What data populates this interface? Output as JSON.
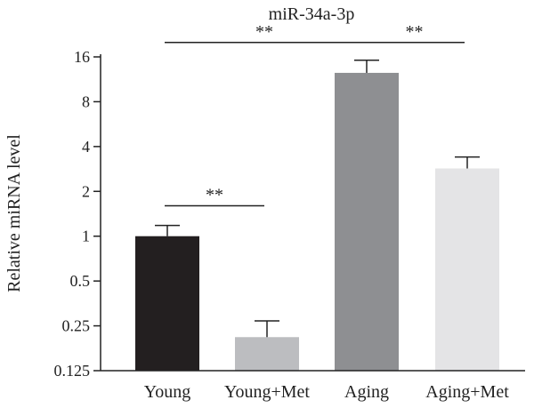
{
  "chart_data": {
    "type": "bar",
    "title": "miR-34a-3p",
    "ylabel": "Relative miRNA level",
    "xlabel": "",
    "yscale": "log2",
    "ylim": [
      0.125,
      16
    ],
    "yticks": [
      0.125,
      0.25,
      0.5,
      1,
      2,
      4,
      8,
      16
    ],
    "ytick_labels": [
      "0.125",
      "0.25",
      "0.5",
      "1",
      "2",
      "4",
      "8",
      "16"
    ],
    "categories": [
      "Young",
      "Young+Met",
      "Aging",
      "Aging+Met"
    ],
    "values": [
      1.0,
      0.21,
      12.5,
      2.85
    ],
    "error_upper": [
      1.18,
      0.27,
      15.2,
      3.4
    ],
    "colors": [
      "#231f20",
      "#bcbdc0",
      "#8e8f92",
      "#e4e4e6"
    ],
    "significance": [
      {
        "from": "Young",
        "to": "Aging",
        "label": "**",
        "level": 20
      },
      {
        "from": "Aging",
        "to": "Aging+Met",
        "label": "**",
        "level": 20
      },
      {
        "from": "Young",
        "to": "Young+Met",
        "label": "**",
        "level": 1.6
      }
    ]
  }
}
